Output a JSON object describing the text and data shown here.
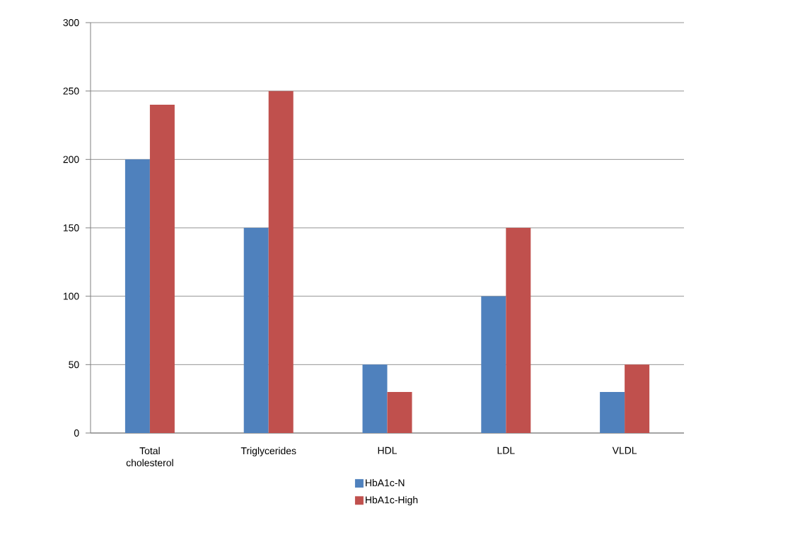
{
  "chart_data": {
    "type": "bar",
    "categories": [
      "Total cholesterol",
      "Triglycerides",
      "HDL",
      "LDL",
      "VLDL"
    ],
    "series": [
      {
        "name": "HbA1c-N",
        "color": "#4f81bd",
        "values": [
          200,
          150,
          50,
          100,
          30
        ]
      },
      {
        "name": "HbA1c-High",
        "color": "#c0504d",
        "values": [
          240,
          250,
          30,
          150,
          50
        ]
      }
    ],
    "ylim": [
      0,
      300
    ],
    "yticks": [
      0,
      50,
      100,
      150,
      200,
      250,
      300
    ],
    "grid": "y",
    "legend": "bottom"
  }
}
